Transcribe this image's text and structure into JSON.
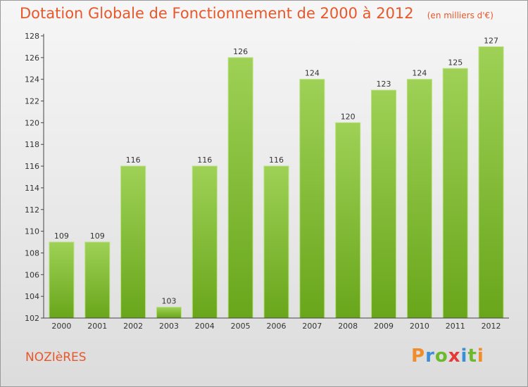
{
  "title": "Dotation Globale de Fonctionnement de 2000 à 2012",
  "subtitle": "(en milliers d'€)",
  "commune": "NOZIèRES",
  "logo": {
    "text": "Proxiti",
    "colors": [
      "#f08c2a",
      "#3a8fd6",
      "#6cb92b",
      "#e53935",
      "#3a8fd6",
      "#6cb92b",
      "#f08c2a"
    ]
  },
  "colors": {
    "bar_top": "#9ed156",
    "bar_bottom": "#69a61b",
    "title": "#e8572a"
  },
  "chart_data": {
    "type": "bar",
    "categories": [
      "2000",
      "2001",
      "2002",
      "2003",
      "2004",
      "2005",
      "2006",
      "2007",
      "2008",
      "2009",
      "2010",
      "2011",
      "2012"
    ],
    "values": [
      109,
      109,
      116,
      103,
      116,
      126,
      116,
      124,
      120,
      123,
      124,
      125,
      127
    ],
    "ylim": [
      102,
      128
    ],
    "yticks": [
      102,
      104,
      106,
      108,
      110,
      112,
      114,
      116,
      118,
      120,
      122,
      124,
      126,
      128
    ],
    "grid": false
  }
}
